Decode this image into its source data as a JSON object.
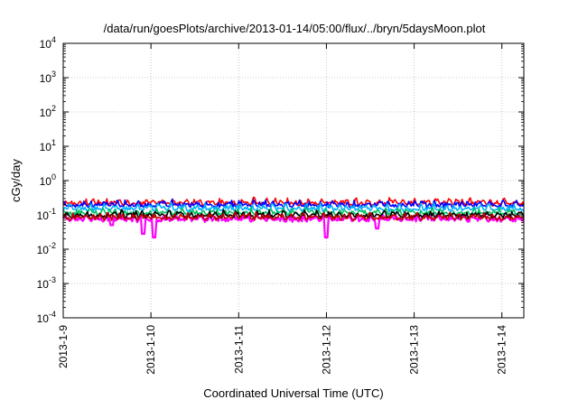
{
  "chart_data": {
    "type": "line",
    "title": "/data/run/goesPlots/archive/2013-01-14/05:00/flux/../bryn/5daysMoon.plot",
    "xlabel": "Coordinated Universal Time (UTC)",
    "ylabel": "cGy/day",
    "yscale": "log",
    "ylim": [
      0.0001,
      10000
    ],
    "xlim": [
      "2013-01-09T00:00",
      "2013-01-14T06:00"
    ],
    "grid": true,
    "legend": "none",
    "x_ticks": [
      "2013-1-9",
      "2013-1-10",
      "2013-1-11",
      "2013-1-12",
      "2013-1-13",
      "2013-1-14"
    ],
    "y_ticks": [
      {
        "base": "10",
        "exp": "-4"
      },
      {
        "base": "10",
        "exp": "-3"
      },
      {
        "base": "10",
        "exp": "-2"
      },
      {
        "base": "10",
        "exp": "-1"
      },
      {
        "base": "10",
        "exp": "0"
      },
      {
        "base": "10",
        "exp": "1"
      },
      {
        "base": "10",
        "exp": "2"
      },
      {
        "base": "10",
        "exp": "3"
      },
      {
        "base": "10",
        "exp": "4"
      }
    ],
    "series": [
      {
        "color": "#ff00ff",
        "base_value": 0.085,
        "dips": [
          {
            "x": "2013-01-09T13:12",
            "y": 0.05
          },
          {
            "x": "2013-01-09T22:00",
            "y": 0.028
          },
          {
            "x": "2013-01-10T01:00",
            "y": 0.022
          },
          {
            "x": "2013-01-12T00:00",
            "y": 0.022
          },
          {
            "x": "2013-01-12T14:00",
            "y": 0.04
          }
        ]
      },
      {
        "color": "#ff0000",
        "base_value": 0.25,
        "dips": []
      },
      {
        "color": "#0000ff",
        "base_value": 0.22,
        "dips": []
      },
      {
        "color": "#00b0ff",
        "base_value": 0.17,
        "dips": []
      },
      {
        "color": "#00c060",
        "base_value": 0.13,
        "dips": []
      },
      {
        "color": "#000000",
        "base_value": 0.11,
        "dips": []
      },
      {
        "color": "#c00000",
        "base_value": 0.095,
        "dips": []
      }
    ]
  }
}
